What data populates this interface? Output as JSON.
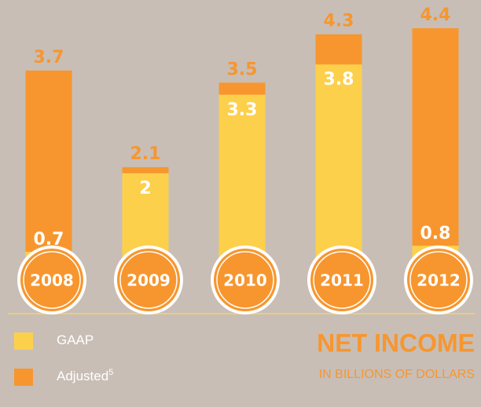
{
  "chart_data": {
    "type": "overlap_bar",
    "title": "NET INCOME",
    "subtitle": "IN BILLIONS OF DOLLARS",
    "categories": [
      "2008",
      "2009",
      "2010",
      "2011",
      "2012"
    ],
    "series": [
      {
        "name": "Adjusted",
        "footnote": "5",
        "color": "#f7962e",
        "values": [
          3.7,
          2.1,
          3.5,
          4.3,
          4.4
        ]
      },
      {
        "name": "GAAP",
        "color": "#fdd04b",
        "values": [
          0.7,
          2.0,
          3.3,
          3.8,
          0.8
        ]
      }
    ]
  }
}
